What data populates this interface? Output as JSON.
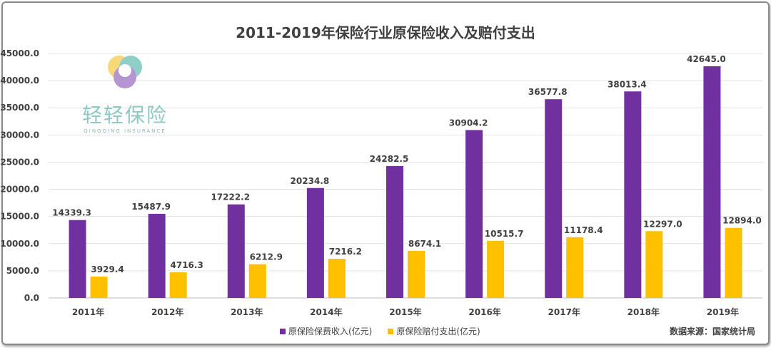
{
  "logo": {
    "name_cn": "轻轻保险",
    "name_en": "QINGQING INSURANCE"
  },
  "source": "数据来源：国家统计局",
  "chart_data": {
    "type": "bar",
    "title": "2011-2019年保险行业原保险收入及赔付支出",
    "categories": [
      "2011年",
      "2012年",
      "2013年",
      "2014年",
      "2015年",
      "2016年",
      "2017年",
      "2018年",
      "2019年"
    ],
    "series": [
      {
        "name": "原保险保费收入(亿元)",
        "color": "#7030a0",
        "values": [
          14339.3,
          15487.9,
          17222.2,
          20234.8,
          24282.5,
          30904.2,
          36577.8,
          38013.4,
          42645.0
        ]
      },
      {
        "name": "原保险赔付支出(亿元)",
        "color": "#ffc000",
        "values": [
          3929.4,
          4716.3,
          6212.9,
          7216.2,
          8674.1,
          10515.7,
          11178.4,
          12297.0,
          12894.0
        ]
      }
    ],
    "ylim": [
      0,
      45000
    ],
    "yticks": [
      "0.0",
      "5000.0",
      "10000.0",
      "15000.0",
      "20000.0",
      "25000.0",
      "30000.0",
      "35000.0",
      "40000.0",
      "45000.0"
    ],
    "grid": true,
    "legend": "bottom"
  }
}
